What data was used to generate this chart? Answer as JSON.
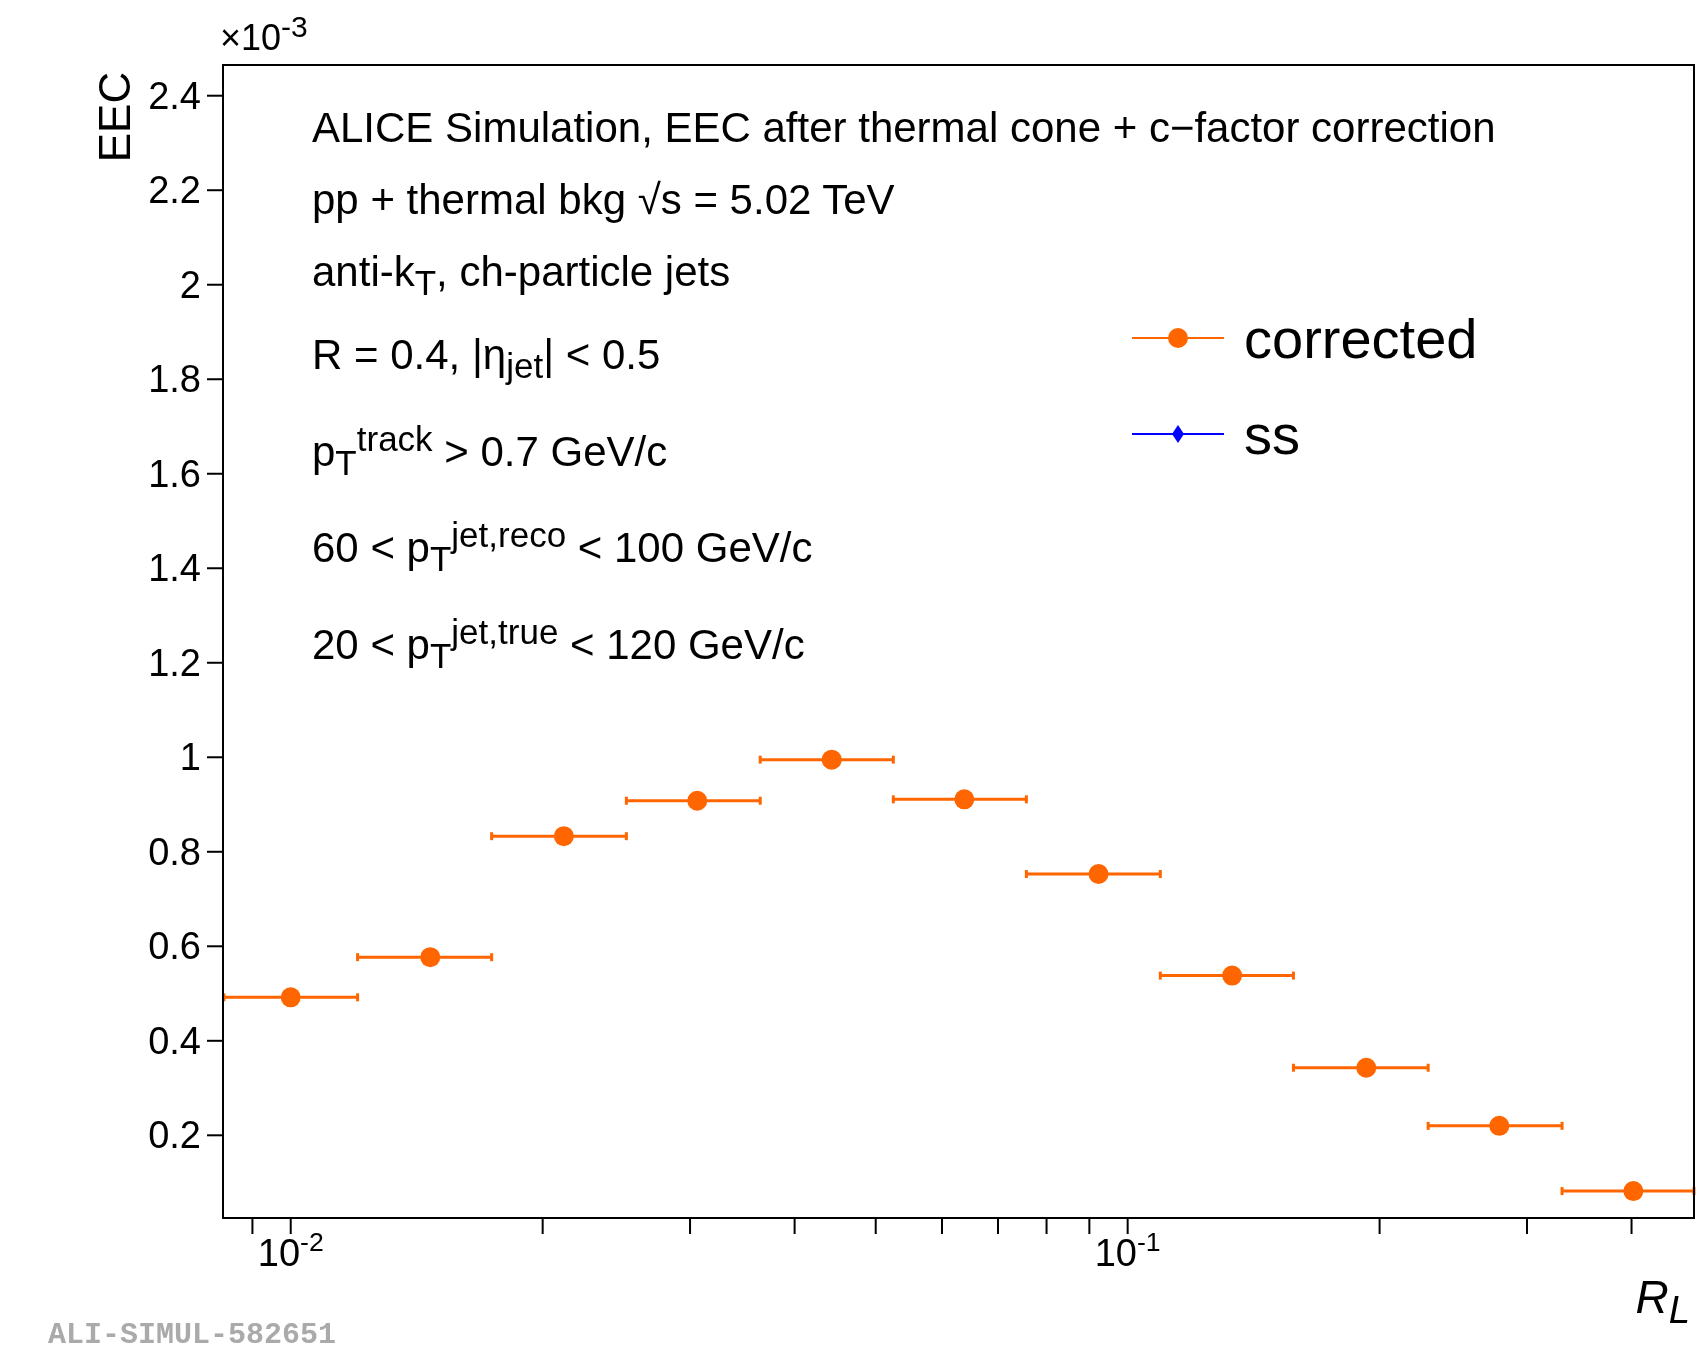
{
  "chart_data": {
    "type": "scatter",
    "xlabel": "R$_{L}$",
    "ylabel": "EEC",
    "x": [
      0.01,
      0.01468,
      0.0212,
      0.0306,
      0.0443,
      0.0638,
      0.0923,
      0.1333,
      0.1928,
      0.278,
      0.402
    ],
    "series": [
      {
        "name": "corrected",
        "color": "#ff6600",
        "marker": "circle",
        "values": [
          0.492,
          0.577,
          0.833,
          0.908,
          0.995,
          0.911,
          0.753,
          0.538,
          0.343,
          0.22,
          0.082
        ],
        "xerrors": [
          [
            0.00832,
            0.01202
          ],
          [
            0.01202,
            0.01738
          ],
          [
            0.01738,
            0.02518
          ],
          [
            0.02518,
            0.03639
          ],
          [
            0.03639,
            0.05248
          ],
          [
            0.05248,
            0.07568
          ],
          [
            0.07568,
            0.1094
          ],
          [
            0.1094,
            0.1578
          ],
          [
            0.1578,
            0.2286
          ],
          [
            0.2286,
            0.3304
          ],
          [
            0.3304,
            0.475
          ]
        ]
      },
      {
        "name": "ss",
        "color": "#0000ff",
        "marker": "diamond",
        "values": [
          null,
          null,
          null,
          null,
          null,
          null,
          null,
          null,
          null,
          null,
          null
        ]
      }
    ],
    "log": "x",
    "xlim": [
      0.0083,
      0.475
    ],
    "xticks": [
      {
        "value": 0.009,
        "label": null
      },
      {
        "value": 0.01,
        "label": "10$^{-2}$"
      },
      {
        "value": 0.02,
        "label": null
      },
      {
        "value": 0.03,
        "label": null
      },
      {
        "value": 0.04,
        "label": null
      },
      {
        "value": 0.05,
        "label": null
      },
      {
        "value": 0.06,
        "label": null
      },
      {
        "value": 0.07,
        "label": null
      },
      {
        "value": 0.08,
        "label": null
      },
      {
        "value": 0.09,
        "label": null
      },
      {
        "value": 0.1,
        "label": "10$^{-1}$"
      },
      {
        "value": 0.2,
        "label": null
      },
      {
        "value": 0.3,
        "label": null
      },
      {
        "value": 0.4,
        "label": null
      }
    ],
    "ylim": [
      0.025,
      2.465
    ],
    "yticks": [
      0.2,
      0.4,
      0.6,
      0.8,
      1,
      1.2,
      1.4,
      1.6,
      1.8,
      2,
      2.2,
      2.4
    ],
    "grid": false,
    "legend": "top right",
    "annotations": [
      "ALICE Simulation, EEC after thermal cone + c−factor correction",
      "pp + thermal bkg √s = 5.02 TeV",
      "anti-k$_{T}$, ch-particle jets",
      "R = 0.4, |η$_{jet}$| < 0.5",
      "p$_{T}$$^{track}$ > 0.7 GeV/c",
      "60 < p$_{T}$$^{jet,reco}$ < 100 GeV/c",
      "20 < p$_{T}$$^{jet,true}$ < 120 GeV/c",
      "×10$^{-3}$",
      "ALI-SIMUL-582651"
    ]
  }
}
